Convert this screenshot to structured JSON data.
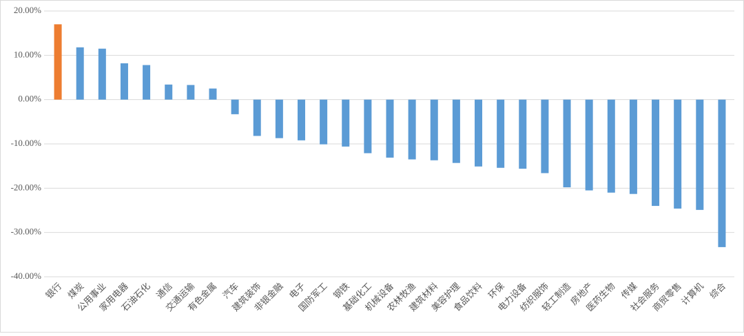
{
  "chart_data": {
    "type": "bar",
    "categories": [
      "银行",
      "煤炭",
      "公用事业",
      "家用电器",
      "石油石化",
      "通信",
      "交通运输",
      "有色金属",
      "汽车",
      "建筑装饰",
      "非银金融",
      "电子",
      "国防军工",
      "钢铁",
      "基础化工",
      "机械设备",
      "农林牧渔",
      "建筑材料",
      "美容护理",
      "食品饮料",
      "环保",
      "电力设备",
      "纺织服饰",
      "轻工制造",
      "房地产",
      "医药生物",
      "传媒",
      "社会服务",
      "商贸零售",
      "计算机",
      "综合"
    ],
    "values": [
      17.0,
      11.8,
      11.5,
      8.2,
      7.8,
      3.4,
      3.3,
      2.5,
      -3.3,
      -8.2,
      -8.7,
      -9.2,
      -10.1,
      -10.6,
      -12.1,
      -13.1,
      -13.5,
      -13.7,
      -14.3,
      -15.1,
      -15.4,
      -15.6,
      -16.6,
      -19.8,
      -20.5,
      -21.0,
      -21.3,
      -24.0,
      -24.6,
      -24.9,
      -33.3
    ],
    "colors": [
      "#ed7d31",
      "#5b9bd5",
      "#5b9bd5",
      "#5b9bd5",
      "#5b9bd5",
      "#5b9bd5",
      "#5b9bd5",
      "#5b9bd5",
      "#5b9bd5",
      "#5b9bd5",
      "#5b9bd5",
      "#5b9bd5",
      "#5b9bd5",
      "#5b9bd5",
      "#5b9bd5",
      "#5b9bd5",
      "#5b9bd5",
      "#5b9bd5",
      "#5b9bd5",
      "#5b9bd5",
      "#5b9bd5",
      "#5b9bd5",
      "#5b9bd5",
      "#5b9bd5",
      "#5b9bd5",
      "#5b9bd5",
      "#5b9bd5",
      "#5b9bd5",
      "#5b9bd5",
      "#5b9bd5",
      "#5b9bd5"
    ],
    "ylim": [
      -40,
      20
    ],
    "yticks": [
      {
        "value": -40,
        "label": "-40.00%"
      },
      {
        "value": -30,
        "label": "-30.00%"
      },
      {
        "value": -20,
        "label": "-20.00%"
      },
      {
        "value": -10,
        "label": "-10.00%"
      },
      {
        "value": 0,
        "label": "0.00%"
      },
      {
        "value": 10,
        "label": "10.00%"
      },
      {
        "value": 20,
        "label": "20.00%"
      }
    ],
    "grid": true
  }
}
